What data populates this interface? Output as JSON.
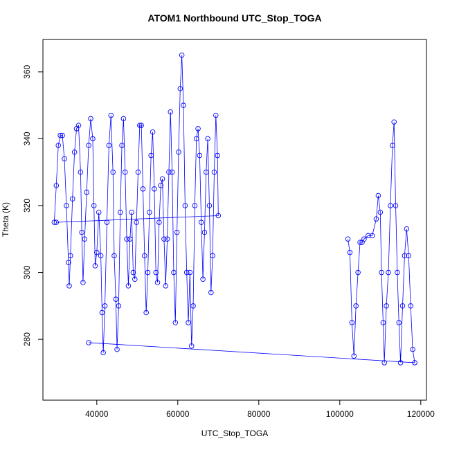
{
  "chart_data": {
    "type": "line",
    "title": "ATOM1 Northbound UTC_Stop_TOGA",
    "x_label": "UTC_Stop_TOGA",
    "y_label": "Theta (K)",
    "xlim": [
      26700,
      121400
    ],
    "ylim": [
      261.8,
      369.7
    ],
    "xticks": [
      40000,
      60000,
      80000,
      100000,
      120000
    ],
    "yticks": [
      280,
      300,
      320,
      340,
      360
    ],
    "series": [
      {
        "color": "#0000ff",
        "x": [
          29500,
          30000,
          30500,
          31000,
          31500,
          32000,
          32500,
          33000,
          33200,
          33500,
          34000,
          34500,
          35000,
          35500,
          36000,
          36300,
          36600,
          37000,
          37500,
          38000,
          38500,
          39000,
          39300,
          39600,
          40000,
          40500,
          41000,
          41300,
          41600,
          42000,
          42500,
          43000,
          43500,
          44000,
          44300,
          44700,
          45000,
          45400,
          45800,
          46200,
          46600,
          47000,
          47400,
          47800,
          48200,
          48600,
          49000,
          49400,
          49800,
          50200,
          50600,
          51000,
          51400,
          51800,
          52200,
          52600,
          53000,
          53400,
          53800,
          54200,
          54600,
          55000,
          55400,
          55800,
          56200,
          56600,
          57000,
          57400,
          57800,
          58200,
          58600,
          59000,
          59400,
          59800,
          60200,
          60600,
          61000,
          61400,
          61800,
          62200,
          62600,
          63000,
          63400,
          63800,
          64200,
          64600,
          65000,
          65400,
          65800,
          66200,
          66600,
          67000,
          67400,
          67800,
          68200,
          68600,
          69000,
          69400,
          69800,
          70000,
          30000,
          null,
          102000,
          102500,
          103000,
          103500,
          104000,
          104500,
          105000,
          105500,
          106000,
          107000,
          108000,
          109000,
          109500,
          110000,
          110300,
          110700,
          111000,
          111500,
          112000,
          112500,
          113000,
          113400,
          113800,
          114200,
          114600,
          115000,
          115500,
          116000,
          116500,
          117000,
          117500,
          118000,
          118500,
          38000
        ],
        "values": [
          315,
          326,
          338,
          341,
          341,
          334,
          320,
          303,
          296,
          305,
          322,
          336,
          343,
          344,
          330,
          312,
          297,
          310,
          324,
          338,
          346,
          340,
          320,
          302,
          306,
          318,
          305,
          288,
          276,
          290,
          315,
          338,
          347,
          330,
          305,
          292,
          277,
          290,
          318,
          338,
          346,
          330,
          310,
          296,
          310,
          318,
          300,
          298,
          315,
          330,
          344,
          344,
          325,
          305,
          288,
          300,
          318,
          335,
          342,
          325,
          300,
          297,
          315,
          326,
          328,
          310,
          296,
          310,
          330,
          348,
          330,
          300,
          285,
          312,
          336,
          355,
          365,
          350,
          320,
          300,
          285,
          300,
          278,
          290,
          320,
          340,
          343,
          335,
          315,
          298,
          312,
          330,
          340,
          320,
          294,
          305,
          330,
          347,
          335,
          317,
          315,
          null,
          310,
          306,
          285,
          275,
          290,
          300,
          309,
          309,
          310,
          311,
          311,
          316,
          323,
          318,
          300,
          285,
          273,
          290,
          300,
          320,
          338,
          345,
          320,
          300,
          285,
          273,
          290,
          305,
          313,
          305,
          290,
          277,
          273,
          279
        ]
      }
    ]
  }
}
